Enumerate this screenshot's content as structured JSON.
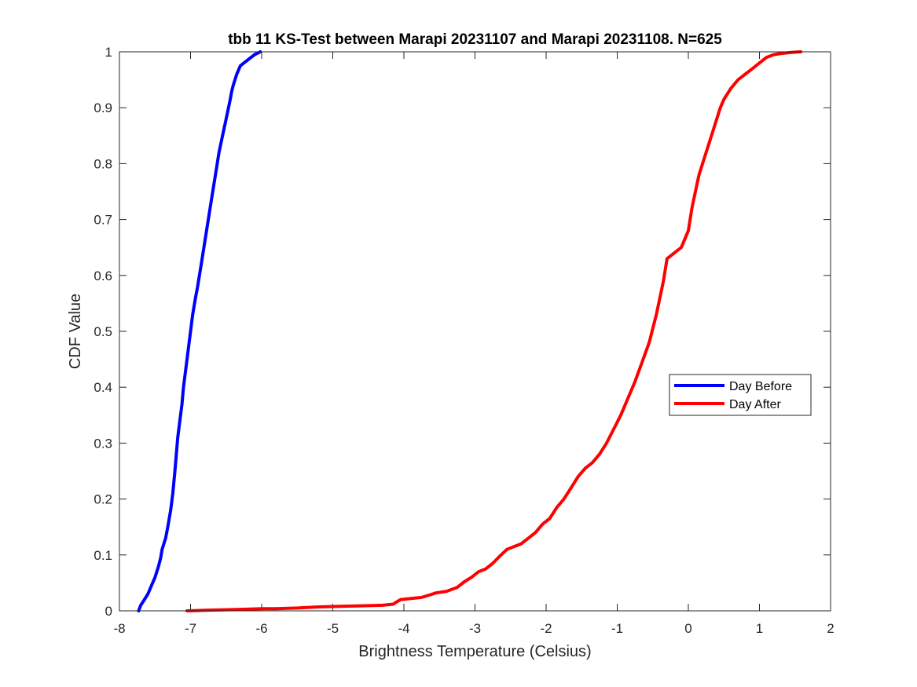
{
  "chart_data": {
    "type": "line",
    "title": "tbb 11 KS-Test between Marapi 20231107 and Marapi 20231108. N=625",
    "xlabel": "Brightness Temperature (Celsius)",
    "ylabel": "CDF Value",
    "xlim": [
      -8,
      2
    ],
    "ylim": [
      0,
      1
    ],
    "xticks": [
      -8,
      -7,
      -6,
      -5,
      -4,
      -3,
      -2,
      -1,
      0,
      1,
      2
    ],
    "yticks": [
      0,
      0.1,
      0.2,
      0.3,
      0.4,
      0.5,
      0.6,
      0.7,
      0.8,
      0.9,
      1
    ],
    "xtick_labels": [
      "-8",
      "-7",
      "-6",
      "-5",
      "-4",
      "-3",
      "-2",
      "-1",
      "0",
      "1",
      "2"
    ],
    "ytick_labels": [
      "0",
      "0.1",
      "0.2",
      "0.3",
      "0.4",
      "0.5",
      "0.6",
      "0.7",
      "0.8",
      "0.9",
      "1"
    ],
    "grid": false,
    "legend_position": "right",
    "series": [
      {
        "name": "Day Before",
        "color": "#0000ff",
        "x": [
          -7.73,
          -7.7,
          -7.65,
          -7.6,
          -7.55,
          -7.5,
          -7.45,
          -7.42,
          -7.4,
          -7.35,
          -7.32,
          -7.28,
          -7.25,
          -7.22,
          -7.2,
          -7.18,
          -7.15,
          -7.12,
          -7.1,
          -7.08,
          -7.05,
          -7.02,
          -7.0,
          -6.97,
          -6.93,
          -6.9,
          -6.85,
          -6.8,
          -6.75,
          -6.7,
          -6.65,
          -6.6,
          -6.55,
          -6.5,
          -6.45,
          -6.42,
          -6.4,
          -6.35,
          -6.3,
          -6.25,
          -6.2,
          -6.15,
          -6.1,
          -6.05,
          -6.02
        ],
        "y": [
          0.0,
          0.01,
          0.02,
          0.03,
          0.045,
          0.06,
          0.08,
          0.095,
          0.11,
          0.13,
          0.15,
          0.18,
          0.21,
          0.25,
          0.28,
          0.31,
          0.34,
          0.37,
          0.4,
          0.42,
          0.45,
          0.48,
          0.5,
          0.53,
          0.56,
          0.58,
          0.62,
          0.66,
          0.7,
          0.74,
          0.78,
          0.82,
          0.85,
          0.88,
          0.91,
          0.93,
          0.94,
          0.96,
          0.975,
          0.98,
          0.985,
          0.99,
          0.995,
          0.998,
          1.0
        ]
      },
      {
        "name": "Day After",
        "color": "#ff0000",
        "x": [
          -7.05,
          -6.8,
          -6.5,
          -6.2,
          -6.0,
          -5.8,
          -5.5,
          -5.2,
          -4.9,
          -4.6,
          -4.3,
          -4.15,
          -4.1,
          -4.05,
          -3.9,
          -3.75,
          -3.65,
          -3.55,
          -3.4,
          -3.25,
          -3.15,
          -3.05,
          -2.95,
          -2.85,
          -2.75,
          -2.65,
          -2.55,
          -2.45,
          -2.35,
          -2.25,
          -2.15,
          -2.05,
          -1.95,
          -1.85,
          -1.75,
          -1.65,
          -1.55,
          -1.45,
          -1.35,
          -1.25,
          -1.15,
          -1.05,
          -0.95,
          -0.85,
          -0.75,
          -0.65,
          -0.55,
          -0.45,
          -0.4,
          -0.35,
          -0.3,
          -0.25,
          -0.2,
          -0.1,
          0.0,
          0.05,
          0.1,
          0.15,
          0.2,
          0.3,
          0.35,
          0.4,
          0.45,
          0.5,
          0.55,
          0.6,
          0.7,
          0.8,
          0.9,
          1.0,
          1.1,
          1.2,
          1.3,
          1.45,
          1.58
        ],
        "y": [
          0.0,
          0.001,
          0.002,
          0.003,
          0.004,
          0.004,
          0.005,
          0.007,
          0.008,
          0.009,
          0.01,
          0.012,
          0.016,
          0.02,
          0.022,
          0.024,
          0.028,
          0.032,
          0.035,
          0.042,
          0.052,
          0.06,
          0.07,
          0.075,
          0.085,
          0.098,
          0.11,
          0.115,
          0.12,
          0.13,
          0.14,
          0.155,
          0.165,
          0.185,
          0.2,
          0.22,
          0.24,
          0.255,
          0.265,
          0.28,
          0.3,
          0.325,
          0.35,
          0.38,
          0.41,
          0.445,
          0.48,
          0.53,
          0.56,
          0.59,
          0.63,
          0.635,
          0.64,
          0.65,
          0.68,
          0.72,
          0.75,
          0.78,
          0.8,
          0.84,
          0.86,
          0.88,
          0.9,
          0.915,
          0.925,
          0.935,
          0.95,
          0.96,
          0.97,
          0.98,
          0.99,
          0.995,
          0.997,
          0.999,
          1.0
        ]
      }
    ]
  }
}
